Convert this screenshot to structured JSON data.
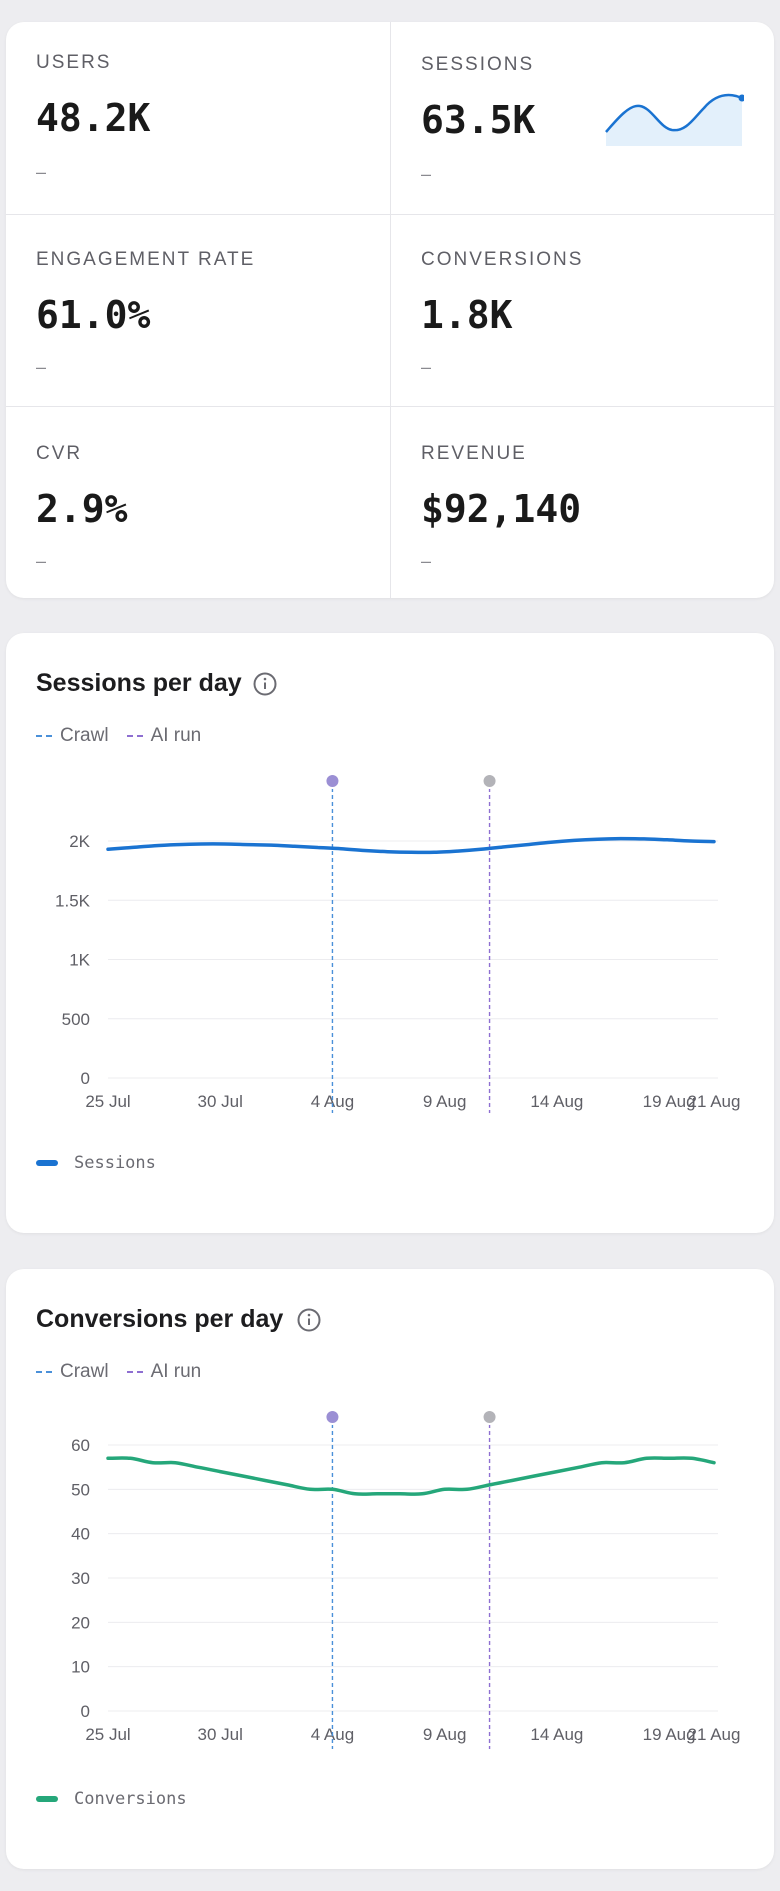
{
  "kpis": [
    {
      "label": "USERS",
      "value": "48.2K",
      "delta": "–"
    },
    {
      "label": "SESSIONS",
      "value": "63.5K",
      "delta": "–"
    },
    {
      "label": "ENGAGEMENT RATE",
      "value": "61.0%",
      "delta": "–"
    },
    {
      "label": "CONVERSIONS",
      "value": "1.8K",
      "delta": "–"
    },
    {
      "label": "CVR",
      "value": "2.9%",
      "delta": "–"
    },
    {
      "label": "REVENUE",
      "value": "$92,140",
      "delta": "–"
    }
  ],
  "colors": {
    "sessions": "#1a73d1",
    "conversions": "#25a77a",
    "crawl": "#4a90d9",
    "ai_run": "#8e6fd1",
    "marker_ai": "#9b8fd4",
    "marker_grey": "#b3b3b8"
  },
  "annotation_legend": {
    "crawl": "Crawl",
    "ai_run": "AI run"
  },
  "icons": {
    "info": "info-icon"
  },
  "chart_data": [
    {
      "type": "line",
      "title": "Sessions per day",
      "x_ticks": [
        "25 Jul",
        "30 Jul",
        "4 Aug",
        "9 Aug",
        "14 Aug",
        "19 Aug",
        "21 Aug"
      ],
      "y_ticks": [
        "0",
        "500",
        "1K",
        "1.5K",
        "2K"
      ],
      "ylim": [
        0,
        2000
      ],
      "series": [
        {
          "name": "Sessions",
          "values": [
            1930,
            1945,
            1960,
            1970,
            1975,
            1975,
            1970,
            1965,
            1955,
            1945,
            1935,
            1920,
            1910,
            1905,
            1905,
            1915,
            1930,
            1950,
            1970,
            1990,
            2005,
            2015,
            2020,
            2018,
            2010,
            2000,
            1995
          ]
        }
      ],
      "annotations": [
        {
          "type": "Crawl",
          "x": "4 Aug"
        },
        {
          "type": "AI run",
          "x": "11 Aug"
        }
      ],
      "grid": true,
      "legend": "bottom-left"
    },
    {
      "type": "line",
      "title": "Conversions per day",
      "x_ticks": [
        "25 Jul",
        "30 Jul",
        "4 Aug",
        "9 Aug",
        "14 Aug",
        "19 Aug",
        "21 Aug"
      ],
      "y_ticks": [
        "0",
        "10",
        "20",
        "30",
        "40",
        "50",
        "60"
      ],
      "ylim": [
        0,
        60
      ],
      "series": [
        {
          "name": "Conversions",
          "values": [
            57,
            57,
            56,
            56,
            55,
            54,
            53,
            52,
            51,
            50,
            50,
            49,
            49,
            49,
            49,
            50,
            50,
            51,
            52,
            53,
            54,
            55,
            56,
            56,
            57,
            57,
            57,
            56
          ]
        }
      ],
      "annotations": [
        {
          "type": "Crawl",
          "x": "4 Aug"
        },
        {
          "type": "AI run",
          "x": "11 Aug"
        }
      ],
      "grid": true,
      "legend": "bottom-left"
    }
  ]
}
